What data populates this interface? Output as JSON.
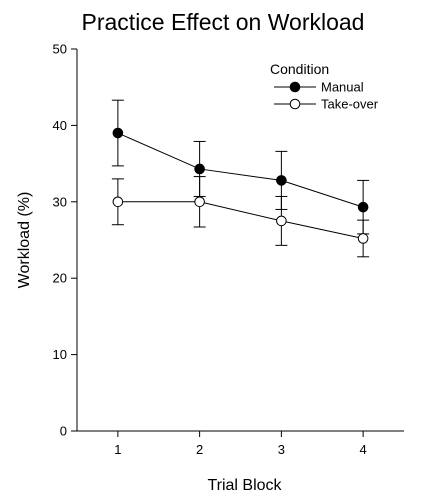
{
  "chart_data": {
    "type": "line",
    "title": "Practice Effect on Workload",
    "xlabel": "Trial Block",
    "ylabel": "Workload (%)",
    "x": [
      1,
      2,
      3,
      4
    ],
    "x_ticks": [
      "1",
      "2",
      "3",
      "4"
    ],
    "xlim": [
      0.5,
      4.5
    ],
    "ylim": [
      0,
      50
    ],
    "y_ticks": [
      0,
      10,
      20,
      30,
      40,
      50
    ],
    "legend": {
      "title": "Condition",
      "placement": "top-right"
    },
    "grid": false,
    "series": [
      {
        "name": "Manual",
        "marker": "filled-circle",
        "color": "#000000",
        "values": [
          39.0,
          34.3,
          32.8,
          29.3
        ],
        "error": [
          4.3,
          3.6,
          3.8,
          3.5
        ]
      },
      {
        "name": "Take-over",
        "marker": "open-circle",
        "color": "#000000",
        "values": [
          30.0,
          30.0,
          27.5,
          25.2
        ],
        "error": [
          3.0,
          3.3,
          3.2,
          2.4
        ]
      }
    ]
  }
}
